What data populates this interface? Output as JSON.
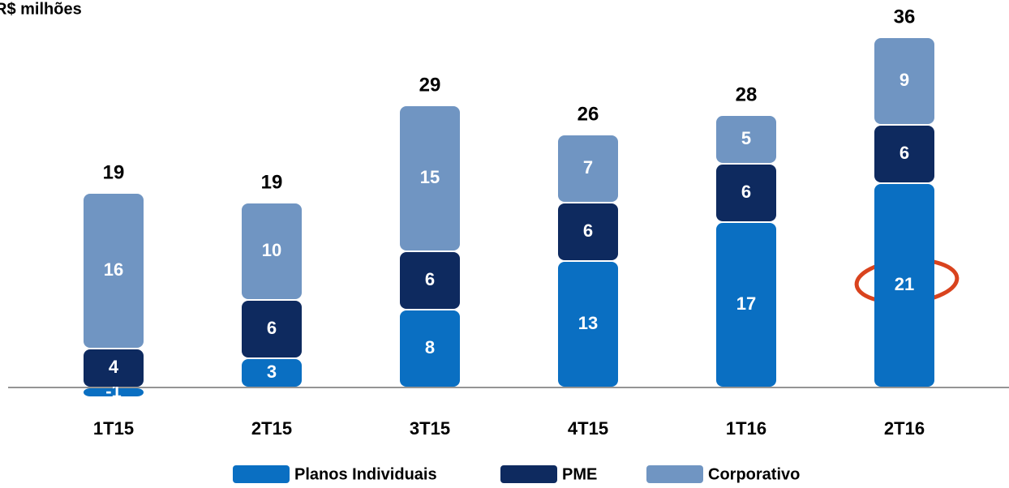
{
  "chart_data": {
    "type": "stacked_bar",
    "title": "R$ milhões",
    "categories": [
      "1T15",
      "2T15",
      "3T15",
      "4T15",
      "1T16",
      "2T16"
    ],
    "series": [
      {
        "name": "Planos Individuais",
        "color": "#0a6fc2",
        "values": [
          -1,
          3,
          8,
          13,
          17,
          21
        ]
      },
      {
        "name": "PME",
        "color": "#0e2a5f",
        "values": [
          4,
          6,
          6,
          6,
          6,
          6
        ]
      },
      {
        "name": "Corporativo",
        "color": "#7095c2",
        "values": [
          16,
          10,
          15,
          7,
          5,
          9
        ]
      }
    ],
    "totals": [
      19,
      19,
      29,
      26,
      28,
      36
    ]
  }
}
